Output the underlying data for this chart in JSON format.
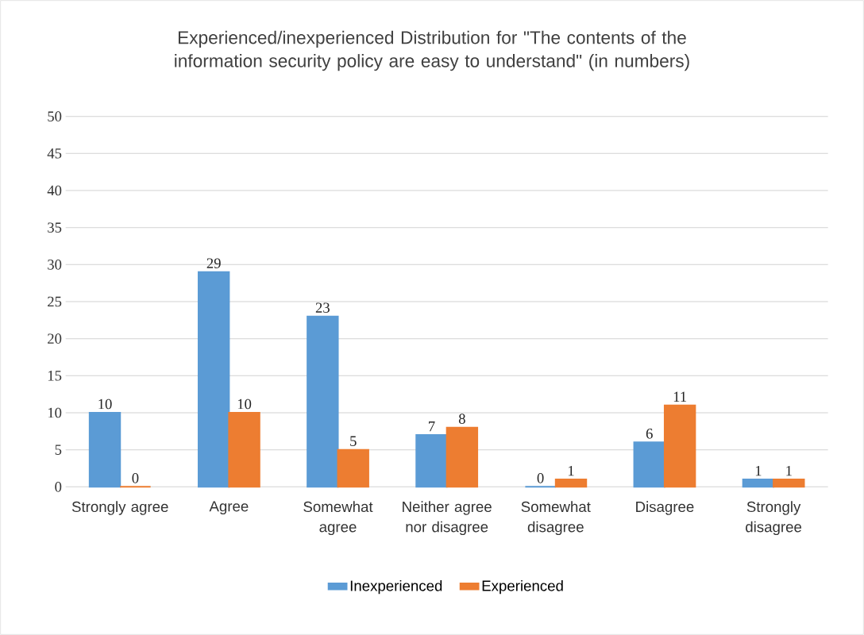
{
  "chart_data": {
    "type": "bar",
    "title": "Experienced/inexperienced Distribution for \"The contents of the information security policy are easy to understand\" (in numbers)",
    "categories": [
      "Strongly agree",
      "Agree",
      "Somewhat agree",
      "Neither agree nor disagree",
      "Somewhat disagree",
      "Disagree",
      "Strongly disagree"
    ],
    "series": [
      {
        "name": "Inexperienced",
        "color": "#5b9bd5",
        "values": [
          10,
          29,
          23,
          7,
          0,
          6,
          1
        ]
      },
      {
        "name": "Experienced",
        "color": "#ed7d31",
        "values": [
          0,
          10,
          5,
          8,
          1,
          11,
          1
        ]
      }
    ],
    "ylim": [
      0,
      50
    ],
    "yticks": [
      0,
      5,
      10,
      15,
      20,
      25,
      30,
      35,
      40,
      45,
      50
    ],
    "grid": "y",
    "legend": "bottom",
    "data_labels": true
  }
}
